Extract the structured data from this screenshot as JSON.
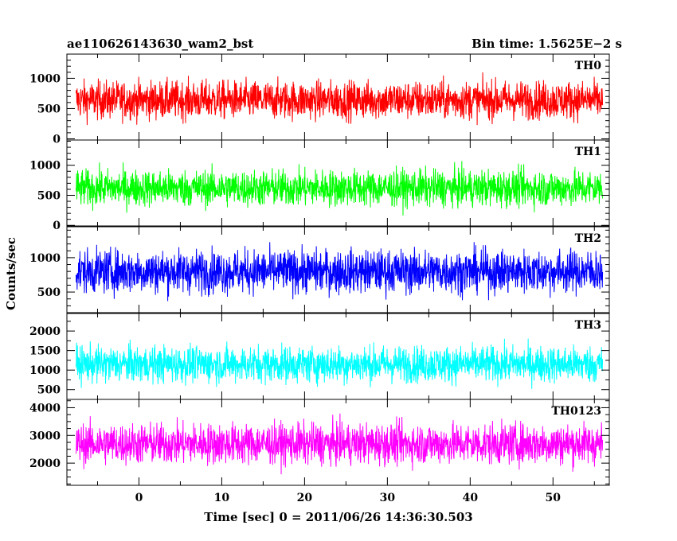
{
  "header": {
    "left_title": "ae110626143630_wam2_bst",
    "right_title": "Bin time: 1.5625E−2 s"
  },
  "chart_data": {
    "type": "line",
    "xlabel": "Time [sec] 0 = 2011/06/26 14:36:30.503",
    "ylabel": "Counts/sec",
    "xlim": [
      -8.7,
      56.8
    ],
    "x_ticks": [
      0,
      10,
      20,
      30,
      40,
      50
    ],
    "x_tick_labels": [
      "0",
      "10",
      "20",
      "30",
      "40",
      "50"
    ],
    "data_x_range": [
      -7.6,
      56.0
    ],
    "bin_time": 0.015625,
    "panels": [
      {
        "label": "TH0",
        "color": "#ff0000",
        "ylim": [
          -20,
          1400
        ],
        "y_ticks": [
          0,
          500,
          1000
        ],
        "y_tick_labels": [
          "0",
          "500",
          "1000"
        ],
        "mean": 640,
        "spread": 620
      },
      {
        "label": "TH1",
        "color": "#00ff00",
        "ylim": [
          -10,
          1420
        ],
        "y_ticks": [
          0,
          500,
          1000
        ],
        "y_tick_labels": [
          "0",
          "500",
          "1000"
        ],
        "mean": 620,
        "spread": 600
      },
      {
        "label": "TH2",
        "color": "#0000ff",
        "ylim": [
          200,
          1450
        ],
        "y_ticks": [
          500,
          1000
        ],
        "y_tick_labels": [
          "500",
          "1000"
        ],
        "mean": 800,
        "spread": 620
      },
      {
        "label": "TH3",
        "color": "#00ffff",
        "ylim": [
          250,
          2450
        ],
        "y_ticks": [
          500,
          1000,
          1500,
          2000
        ],
        "y_tick_labels": [
          "500",
          "1000",
          "1500",
          "2000"
        ],
        "mean": 1150,
        "spread": 920
      },
      {
        "label": "TH0123",
        "color": "#ff00ff",
        "ylim": [
          1200,
          4300
        ],
        "y_ticks": [
          2000,
          3000,
          4000
        ],
        "y_tick_labels": [
          "2000",
          "3000",
          "4000"
        ],
        "mean": 2700,
        "spread": 1450
      }
    ]
  }
}
